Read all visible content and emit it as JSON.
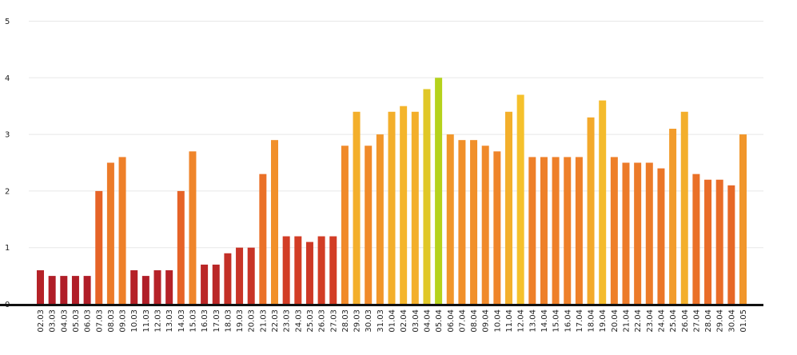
{
  "chart_data": {
    "type": "bar",
    "title": "",
    "xlabel": "",
    "ylabel": "",
    "ylim": [
      0,
      5
    ],
    "yticks": [
      "0",
      "1",
      "2",
      "3",
      "4",
      "5"
    ],
    "grid": true,
    "legend": "none",
    "categories": [
      "02.03",
      "03.03",
      "04.03",
      "05.03",
      "06.03",
      "07.03",
      "08.03",
      "09.03",
      "10.03",
      "11.03",
      "12.03",
      "13.03",
      "14.03",
      "15.03",
      "16.03",
      "17.03",
      "18.03",
      "19.03",
      "20.03",
      "21.03",
      "22.03",
      "23.03",
      "24.03",
      "25.03",
      "26.03",
      "27.03",
      "28.03",
      "29.03",
      "30.03",
      "31.03",
      "01.04",
      "02.04",
      "03.04",
      "04.04",
      "05.04",
      "06.04",
      "07.04",
      "08.04",
      "09.04",
      "10.04",
      "11.04",
      "12.04",
      "13.04",
      "14.04",
      "15.04",
      "16.04",
      "17.04",
      "18.04",
      "19.04",
      "20.04",
      "21.04",
      "22.04",
      "23.04",
      "24.04",
      "25.04",
      "26.04",
      "27.04",
      "28.04",
      "29.04",
      "30.04",
      "01.05"
    ],
    "values": [
      0.6,
      0.5,
      0.5,
      0.5,
      0.5,
      2.0,
      2.5,
      2.6,
      0.6,
      0.5,
      0.6,
      0.6,
      2.0,
      2.7,
      0.7,
      0.7,
      0.9,
      1.0,
      1.0,
      2.3,
      2.9,
      1.2,
      1.2,
      1.1,
      1.2,
      1.2,
      2.8,
      3.4,
      2.8,
      3.0,
      3.4,
      3.5,
      3.4,
      3.8,
      4.0,
      3.0,
      2.9,
      2.9,
      2.8,
      2.7,
      3.4,
      3.7,
      2.6,
      2.6,
      2.6,
      2.6,
      2.6,
      3.3,
      3.6,
      2.6,
      2.5,
      2.5,
      2.5,
      2.4,
      3.1,
      3.4,
      2.3,
      2.2,
      2.2,
      2.1,
      3.0
    ],
    "color_scale": {
      "low": "#b01e28",
      "mid_low": "#e04a25",
      "mid": "#f08a2a",
      "mid_high": "#f5c12c",
      "high": "#b5d21c"
    }
  }
}
